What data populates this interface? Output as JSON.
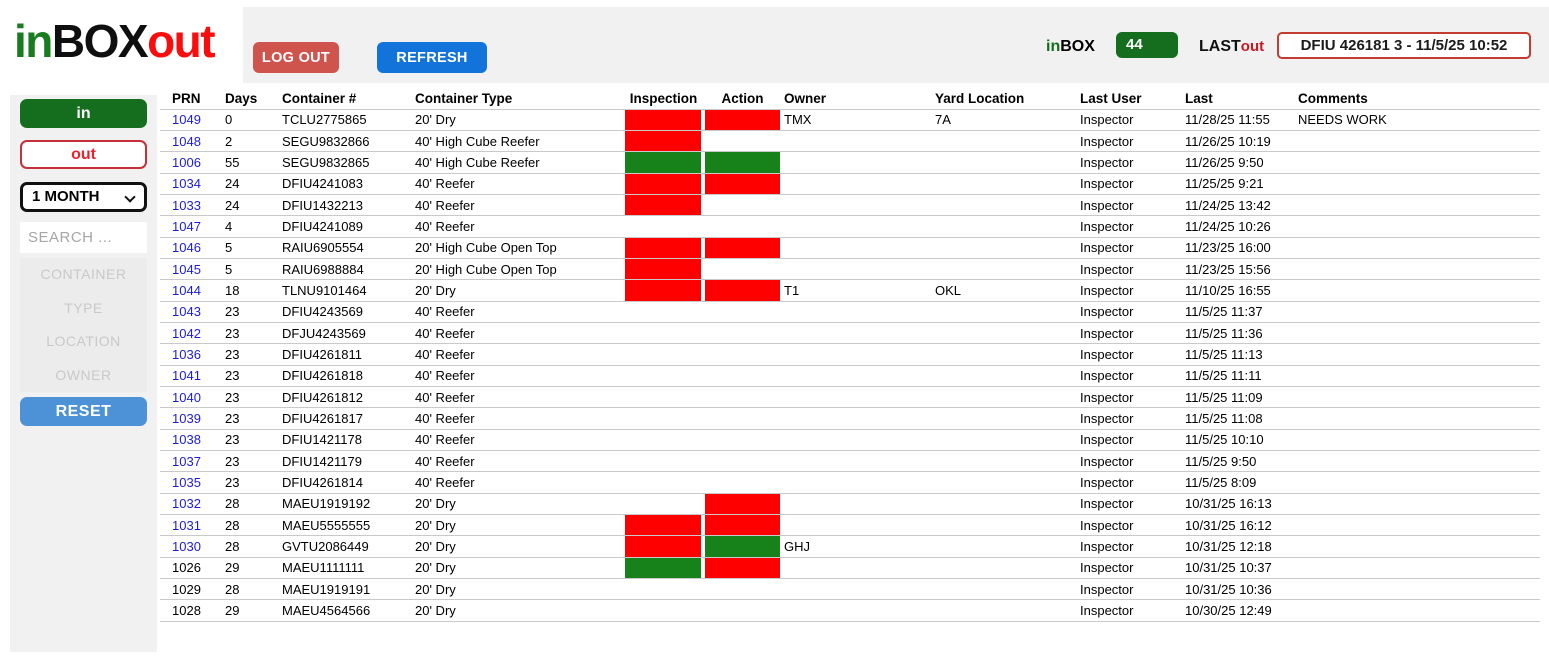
{
  "brand": {
    "in": "in",
    "box": "BOX",
    "out": "out"
  },
  "topbar": {
    "logout_label": "LOG OUT",
    "refresh_label": "REFRESH",
    "inbox_in": "in",
    "inbox_box": "BOX",
    "inbox_count": "44",
    "last_label": "LAST",
    "last_out": "out",
    "lastout_value": "DFIU 426181 3 - 11/5/25 10:52"
  },
  "sidebar": {
    "in_button": "in",
    "out_button": "out",
    "period_selected": "1 MONTH",
    "search_placeholder": "SEARCH ...",
    "filters": [
      "CONTAINER",
      "TYPE",
      "LOCATION",
      "OWNER"
    ],
    "reset_label": "RESET"
  },
  "colors": {
    "status_red": "#fe0000",
    "status_green": "#17821a",
    "brand_green": "#187d20",
    "brand_red": "#fb0d0d",
    "link_blue": "#1c1cd8"
  },
  "table": {
    "columns": [
      "PRN",
      "Days",
      "Container #",
      "Container Type",
      "Inspection",
      "Action",
      "Owner",
      "Yard Location",
      "Last User",
      "Last",
      "Comments"
    ],
    "rows": [
      {
        "prn": "1049",
        "link": true,
        "days": "0",
        "container": "TCLU2775865",
        "type": "20' Dry",
        "inspection": "red",
        "action": "red",
        "owner": "TMX",
        "yard": "7A",
        "last_user": "Inspector",
        "last": "11/28/25 11:55",
        "comments": "NEEDS WORK"
      },
      {
        "prn": "1048",
        "link": true,
        "days": "2",
        "container": "SEGU9832866",
        "type": "40' High Cube Reefer",
        "inspection": "red",
        "action": "",
        "owner": "",
        "yard": "",
        "last_user": "Inspector",
        "last": "11/26/25 10:19",
        "comments": ""
      },
      {
        "prn": "1006",
        "link": true,
        "days": "55",
        "container": "SEGU9832865",
        "type": "40' High Cube Reefer",
        "inspection": "green",
        "action": "green",
        "owner": "",
        "yard": "",
        "last_user": "Inspector",
        "last": "11/26/25 9:50",
        "comments": ""
      },
      {
        "prn": "1034",
        "link": true,
        "days": "24",
        "container": "DFIU4241083",
        "type": "40' Reefer",
        "inspection": "red",
        "action": "red",
        "owner": "",
        "yard": "",
        "last_user": "Inspector",
        "last": "11/25/25 9:21",
        "comments": ""
      },
      {
        "prn": "1033",
        "link": true,
        "days": "24",
        "container": "DFIU1432213",
        "type": "40' Reefer",
        "inspection": "red",
        "action": "",
        "owner": "",
        "yard": "",
        "last_user": "Inspector",
        "last": "11/24/25 13:42",
        "comments": ""
      },
      {
        "prn": "1047",
        "link": true,
        "days": "4",
        "container": "DFIU4241089",
        "type": "40' Reefer",
        "inspection": "",
        "action": "",
        "owner": "",
        "yard": "",
        "last_user": "Inspector",
        "last": "11/24/25 10:26",
        "comments": ""
      },
      {
        "prn": "1046",
        "link": true,
        "days": "5",
        "container": "RAIU6905554",
        "type": "20' High Cube Open Top",
        "inspection": "red",
        "action": "red",
        "owner": "",
        "yard": "",
        "last_user": "Inspector",
        "last": "11/23/25 16:00",
        "comments": ""
      },
      {
        "prn": "1045",
        "link": true,
        "days": "5",
        "container": "RAIU6988884",
        "type": "20' High Cube Open Top",
        "inspection": "red",
        "action": "",
        "owner": "",
        "yard": "",
        "last_user": "Inspector",
        "last": "11/23/25 15:56",
        "comments": ""
      },
      {
        "prn": "1044",
        "link": true,
        "days": "18",
        "container": "TLNU9101464",
        "type": "20' Dry",
        "inspection": "red",
        "action": "red",
        "owner": "T1",
        "yard": "OKL",
        "last_user": "Inspector",
        "last": "11/10/25 16:55",
        "comments": ""
      },
      {
        "prn": "1043",
        "link": true,
        "days": "23",
        "container": "DFIU4243569",
        "type": "40' Reefer",
        "inspection": "",
        "action": "",
        "owner": "",
        "yard": "",
        "last_user": "Inspector",
        "last": "11/5/25 11:37",
        "comments": ""
      },
      {
        "prn": "1042",
        "link": true,
        "days": "23",
        "container": "DFJU4243569",
        "type": "40' Reefer",
        "inspection": "",
        "action": "",
        "owner": "",
        "yard": "",
        "last_user": "Inspector",
        "last": "11/5/25 11:36",
        "comments": ""
      },
      {
        "prn": "1036",
        "link": true,
        "days": "23",
        "container": "DFIU4261811",
        "type": "40' Reefer",
        "inspection": "",
        "action": "",
        "owner": "",
        "yard": "",
        "last_user": "Inspector",
        "last": "11/5/25 11:13",
        "comments": ""
      },
      {
        "prn": "1041",
        "link": true,
        "days": "23",
        "container": "DFIU4261818",
        "type": "40' Reefer",
        "inspection": "",
        "action": "",
        "owner": "",
        "yard": "",
        "last_user": "Inspector",
        "last": "11/5/25 11:11",
        "comments": ""
      },
      {
        "prn": "1040",
        "link": true,
        "days": "23",
        "container": "DFIU4261812",
        "type": "40' Reefer",
        "inspection": "",
        "action": "",
        "owner": "",
        "yard": "",
        "last_user": "Inspector",
        "last": "11/5/25 11:09",
        "comments": ""
      },
      {
        "prn": "1039",
        "link": true,
        "days": "23",
        "container": "DFIU4261817",
        "type": "40' Reefer",
        "inspection": "",
        "action": "",
        "owner": "",
        "yard": "",
        "last_user": "Inspector",
        "last": "11/5/25 11:08",
        "comments": ""
      },
      {
        "prn": "1038",
        "link": true,
        "days": "23",
        "container": "DFIU1421178",
        "type": "40' Reefer",
        "inspection": "",
        "action": "",
        "owner": "",
        "yard": "",
        "last_user": "Inspector",
        "last": "11/5/25 10:10",
        "comments": ""
      },
      {
        "prn": "1037",
        "link": true,
        "days": "23",
        "container": "DFIU1421179",
        "type": "40' Reefer",
        "inspection": "",
        "action": "",
        "owner": "",
        "yard": "",
        "last_user": "Inspector",
        "last": "11/5/25 9:50",
        "comments": ""
      },
      {
        "prn": "1035",
        "link": true,
        "days": "23",
        "container": "DFIU4261814",
        "type": "40' Reefer",
        "inspection": "",
        "action": "",
        "owner": "",
        "yard": "",
        "last_user": "Inspector",
        "last": "11/5/25 8:09",
        "comments": ""
      },
      {
        "prn": "1032",
        "link": true,
        "days": "28",
        "container": "MAEU1919192",
        "type": "20' Dry",
        "inspection": "",
        "action": "red",
        "owner": "",
        "yard": "",
        "last_user": "Inspector",
        "last": "10/31/25 16:13",
        "comments": ""
      },
      {
        "prn": "1031",
        "link": true,
        "days": "28",
        "container": "MAEU5555555",
        "type": "20' Dry",
        "inspection": "red",
        "action": "red",
        "owner": "",
        "yard": "",
        "last_user": "Inspector",
        "last": "10/31/25 16:12",
        "comments": ""
      },
      {
        "prn": "1030",
        "link": true,
        "days": "28",
        "container": "GVTU2086449",
        "type": "20' Dry",
        "inspection": "red",
        "action": "green",
        "owner": "GHJ",
        "yard": "",
        "last_user": "Inspector",
        "last": "10/31/25 12:18",
        "comments": ""
      },
      {
        "prn": "1026",
        "link": false,
        "days": "29",
        "container": "MAEU1111111",
        "type": "20' Dry",
        "inspection": "green",
        "action": "red",
        "owner": "",
        "yard": "",
        "last_user": "Inspector",
        "last": "10/31/25 10:37",
        "comments": ""
      },
      {
        "prn": "1029",
        "link": false,
        "days": "28",
        "container": "MAEU1919191",
        "type": "20' Dry",
        "inspection": "",
        "action": "",
        "owner": "",
        "yard": "",
        "last_user": "Inspector",
        "last": "10/31/25 10:36",
        "comments": ""
      },
      {
        "prn": "1028",
        "link": false,
        "days": "29",
        "container": "MAEU4564566",
        "type": "20' Dry",
        "inspection": "",
        "action": "",
        "owner": "",
        "yard": "",
        "last_user": "Inspector",
        "last": "10/30/25 12:49",
        "comments": ""
      }
    ]
  }
}
